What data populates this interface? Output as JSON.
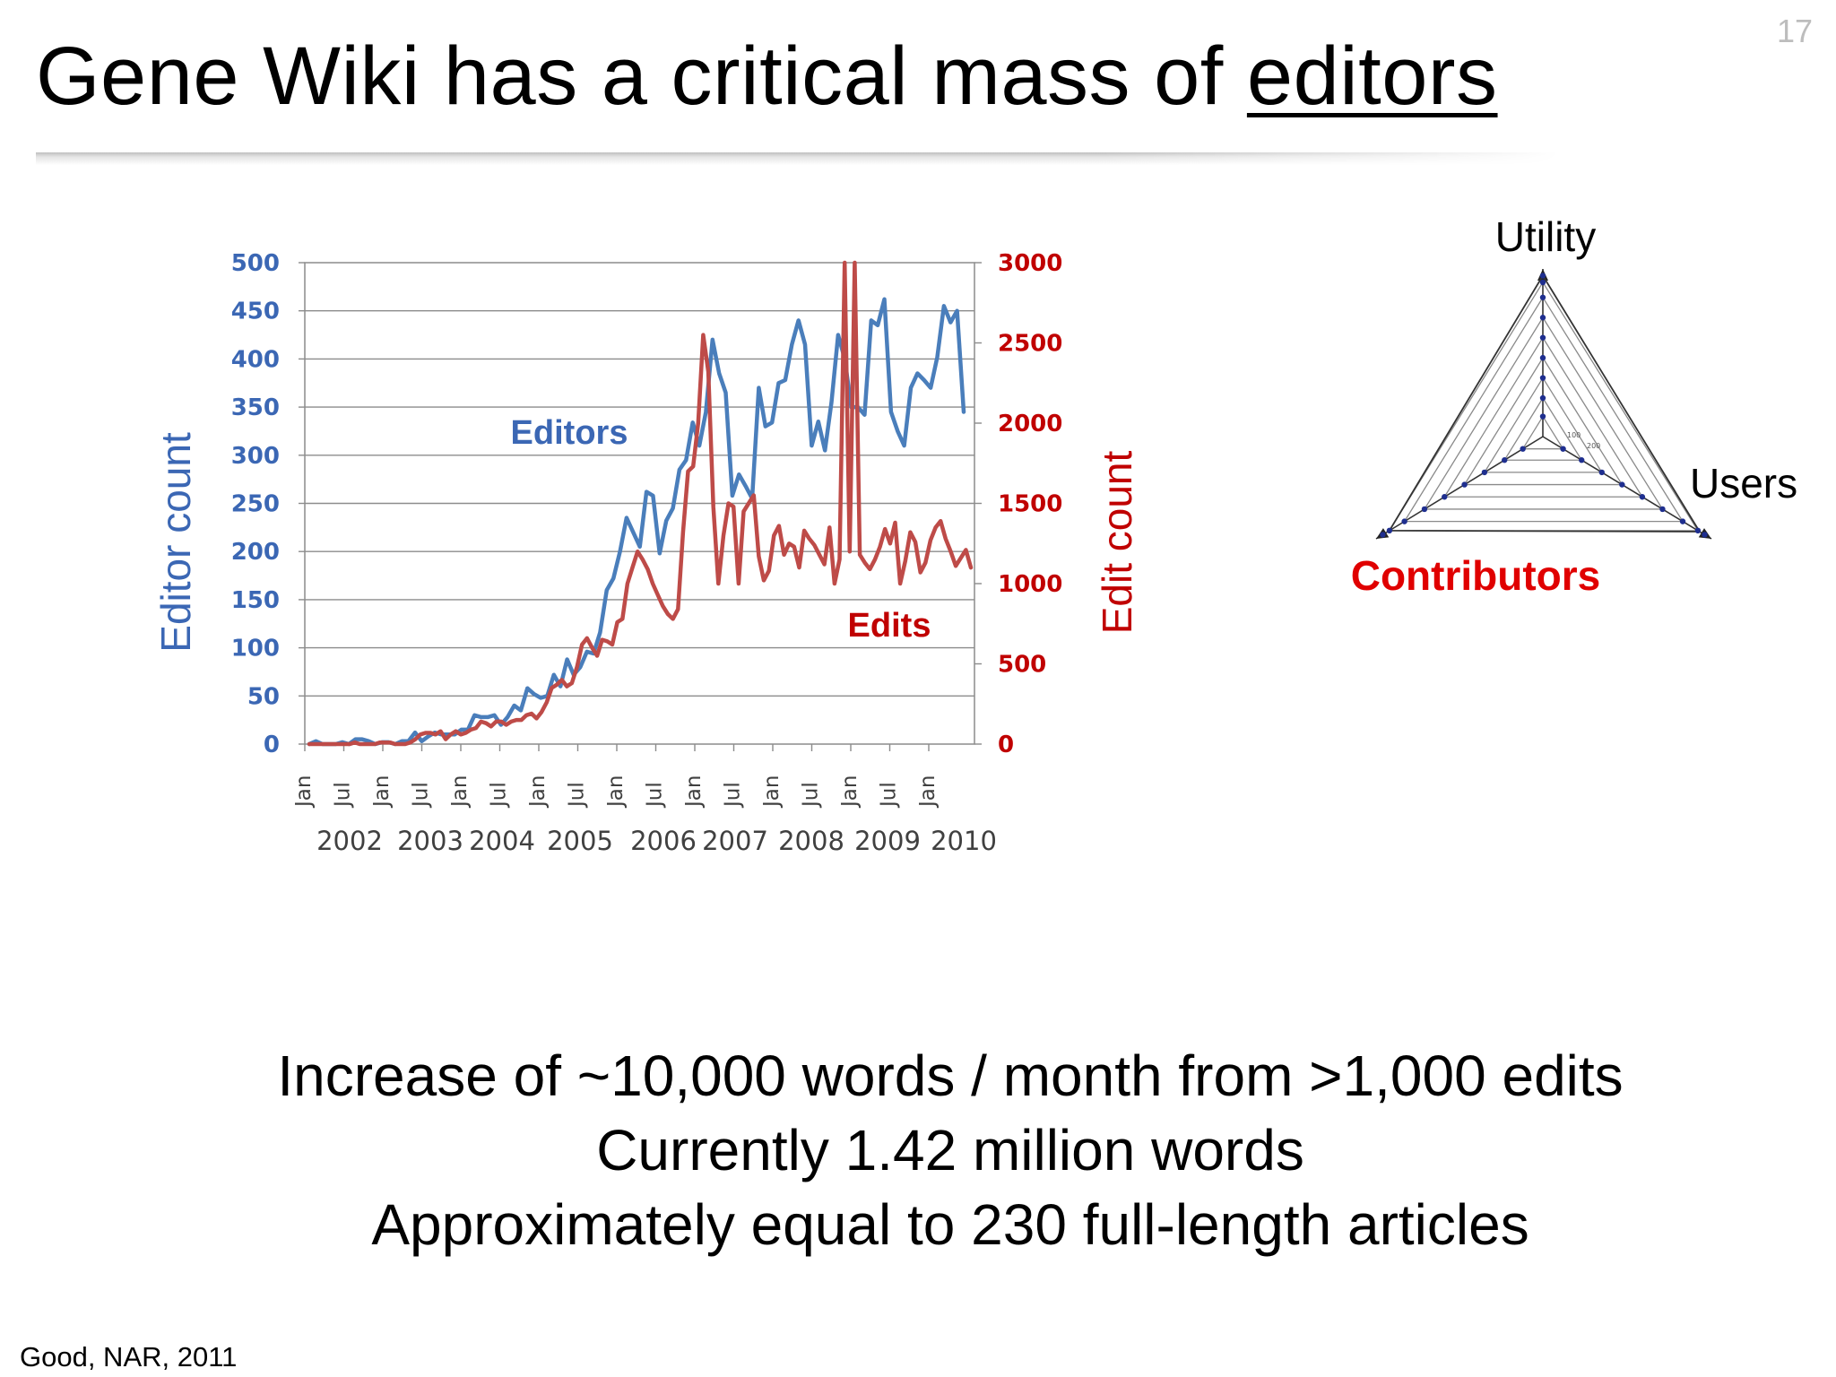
{
  "slide": {
    "number": "17",
    "title_prefix": "Gene Wiki has a critical mass of ",
    "title_emphasis": "editors",
    "citation": "Good, NAR, 2011",
    "body_lines": [
      "Increase of ~10,000 words / month from >1,000 edits",
      "Currently 1.42 million words",
      "Approximately equal to 230 full-length articles"
    ]
  },
  "triangle": {
    "labels": {
      "top": "Utility",
      "right": "Users",
      "left": "Contributors"
    },
    "colors": {
      "left_label": "#e00000"
    }
  },
  "chart_data": {
    "type": "line",
    "colors": {
      "editors": "#4a7ebb",
      "edits": "#be4b48",
      "axis_left": "#3b67b4",
      "axis_right": "#c00000"
    },
    "ylabel_left": "Editor count",
    "ylabel_right": "Edit count",
    "ylim_left": [
      0,
      500
    ],
    "ylim_right": [
      0,
      3000
    ],
    "yticks_left": [
      "500",
      "450",
      "400",
      "350",
      "300",
      "250",
      "200",
      "150",
      "100",
      "50",
      "0"
    ],
    "yticks_right": [
      "3000",
      "2500",
      "2000",
      "1500",
      "1000",
      "500",
      "0"
    ],
    "xtick_labels": [
      "Jan",
      "Jul",
      "Jan",
      "Jul",
      "Jan",
      "Jul",
      "Jan",
      "Jul",
      "Jan",
      "Jul",
      "Jan",
      "Jul",
      "Jan",
      "Jul",
      "Jan",
      "Jul",
      "Jan"
    ],
    "year_labels": [
      "2002",
      "2003",
      "2004",
      "2005",
      "2006",
      "2007",
      "2008",
      "2009",
      "2010"
    ],
    "grid": true,
    "x_start": "2002-01",
    "series": [
      {
        "name": "Editors",
        "axis": "left",
        "values": [
          0,
          3,
          0,
          0,
          0,
          2,
          0,
          5,
          5,
          3,
          0,
          2,
          2,
          0,
          3,
          3,
          12,
          3,
          8,
          12,
          10,
          10,
          10,
          15,
          15,
          30,
          28,
          28,
          30,
          20,
          28,
          40,
          35,
          58,
          52,
          48,
          50,
          72,
          60,
          88,
          72,
          80,
          96,
          94,
          116,
          160,
          172,
          200,
          235,
          220,
          205,
          262,
          258,
          198,
          232,
          245,
          285,
          295,
          334,
          310,
          345,
          420,
          385,
          365,
          258,
          280,
          268,
          255,
          370,
          330,
          334,
          375,
          378,
          415,
          440,
          415,
          310,
          335,
          305,
          355,
          425,
          400,
          350,
          350,
          342,
          440,
          435,
          462,
          345,
          325,
          310,
          370,
          385,
          378,
          370,
          402,
          455,
          438,
          450,
          345
        ]
      },
      {
        "name": "Edits",
        "axis": "right",
        "values": [
          0,
          0,
          0,
          0,
          0,
          0,
          0,
          0,
          0,
          10,
          0,
          0,
          0,
          0,
          10,
          10,
          10,
          0,
          0,
          0,
          10,
          30,
          60,
          70,
          70,
          60,
          80,
          30,
          60,
          80,
          60,
          70,
          90,
          100,
          140,
          130,
          110,
          140,
          140,
          120,
          140,
          150,
          150,
          180,
          190,
          160,
          200,
          260,
          350,
          370,
          400,
          360,
          380,
          480,
          620,
          660,
          600,
          550,
          650,
          640,
          620,
          760,
          780,
          1000,
          1100,
          1200,
          1150,
          1090,
          1000,
          930,
          860,
          810,
          780,
          840,
          1320,
          1700,
          1730,
          2000,
          2550,
          2320,
          1480,
          1000,
          1300,
          1500,
          1480,
          1000,
          1450,
          1500,
          1550,
          1170,
          1020,
          1080,
          1300,
          1360,
          1180,
          1250,
          1230,
          1100,
          1330,
          1280,
          1240,
          1180,
          1120,
          1350,
          1000,
          1150,
          3000,
          1200,
          3000,
          1180,
          1130,
          1090,
          1150,
          1230,
          1340,
          1250,
          1380,
          1000,
          1140,
          1320,
          1260,
          1070,
          1130,
          1270,
          1350,
          1390,
          1280,
          1200,
          1110,
          1160,
          1210,
          1100
        ]
      }
    ],
    "annotations": [
      {
        "text": "Editors",
        "color": "#3b67b4"
      },
      {
        "text": "Edits",
        "color": "#c00000"
      }
    ]
  }
}
